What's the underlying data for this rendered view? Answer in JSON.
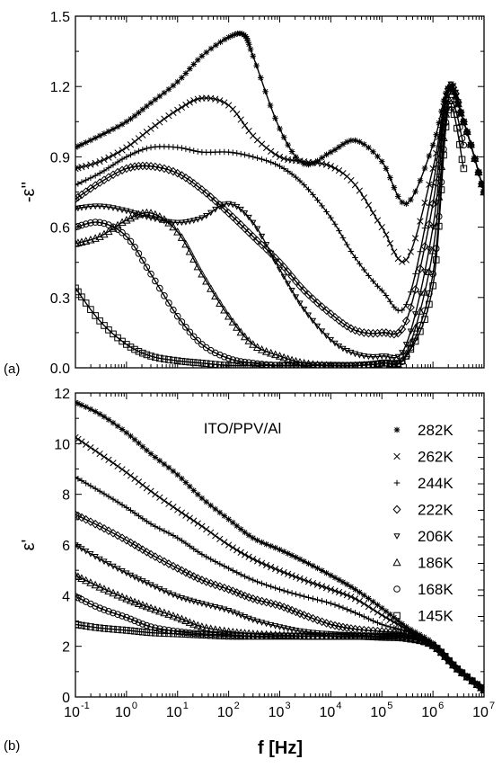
{
  "figure": {
    "panel_a_label": "(a)",
    "panel_b_label": "(b)",
    "xlabel": "f [Hz]"
  },
  "chart_data": [
    {
      "type": "scatter",
      "panel": "(a)",
      "ylabel": "-ε''",
      "xscale": "log",
      "xlim": [
        0.1,
        10000000
      ],
      "ylim": [
        0,
        1.5
      ],
      "yticks": [
        "0.0",
        "0.3",
        "0.6",
        "0.9",
        "1.2",
        "1.5"
      ],
      "grid": false,
      "series": [
        {
          "name": "282K",
          "marker": "asterisk",
          "x": [
            0.1,
            0.3,
            1,
            3,
            10,
            30,
            100,
            200,
            300,
            1000,
            3000,
            10000,
            30000,
            100000,
            300000,
            1000000,
            2000000,
            4000000,
            10000000
          ],
          "y": [
            0.94,
            0.99,
            1.05,
            1.13,
            1.22,
            1.33,
            1.41,
            1.42,
            1.33,
            1.02,
            0.87,
            0.92,
            0.97,
            0.88,
            0.7,
            0.95,
            1.19,
            1.05,
            0.75
          ]
        },
        {
          "name": "262K",
          "marker": "x",
          "x": [
            0.1,
            0.3,
            1,
            3,
            10,
            30,
            100,
            300,
            1000,
            3000,
            10000,
            30000,
            100000,
            300000,
            1000000,
            2000000,
            4000000,
            10000000
          ],
          "y": [
            0.85,
            0.88,
            0.94,
            1.02,
            1.1,
            1.15,
            1.12,
            0.99,
            0.9,
            0.88,
            0.86,
            0.78,
            0.6,
            0.46,
            0.85,
            1.19,
            1.05,
            0.75
          ]
        },
        {
          "name": "244K",
          "marker": "plus",
          "x": [
            0.1,
            0.3,
            1,
            3,
            10,
            30,
            100,
            300,
            1000,
            3000,
            10000,
            30000,
            100000,
            300000,
            1000000,
            2000000,
            4000000,
            10000000
          ],
          "y": [
            0.78,
            0.83,
            0.9,
            0.94,
            0.94,
            0.92,
            0.92,
            0.9,
            0.86,
            0.78,
            0.64,
            0.47,
            0.33,
            0.27,
            0.78,
            1.19,
            1.05,
            0.75
          ]
        },
        {
          "name": "222K",
          "marker": "diamond",
          "x": [
            0.1,
            0.3,
            1,
            3,
            10,
            30,
            100,
            300,
            1000,
            3000,
            10000,
            30000,
            100000,
            300000,
            1000000,
            2000000,
            4000000,
            10000000
          ],
          "y": [
            0.72,
            0.79,
            0.85,
            0.86,
            0.83,
            0.76,
            0.66,
            0.56,
            0.45,
            0.33,
            0.23,
            0.16,
            0.15,
            0.2,
            0.7,
            1.19,
            1.05,
            0.75
          ]
        },
        {
          "name": "206K",
          "marker": "triangle-down",
          "x": [
            0.1,
            0.3,
            1,
            3,
            10,
            30,
            100,
            300,
            1000,
            3000,
            10000,
            30000,
            100000,
            300000,
            1000000,
            2000000,
            4000000,
            10000000
          ],
          "y": [
            0.68,
            0.69,
            0.67,
            0.64,
            0.62,
            0.64,
            0.7,
            0.62,
            0.42,
            0.25,
            0.12,
            0.06,
            0.05,
            0.1,
            0.6,
            1.19,
            1.05,
            0.75
          ]
        },
        {
          "name": "186K",
          "marker": "triangle-up",
          "x": [
            0.1,
            0.3,
            1,
            3,
            10,
            30,
            100,
            300,
            1000,
            3000,
            10000,
            30000,
            100000,
            300000,
            1000000,
            2000000,
            4000000,
            10000000
          ],
          "y": [
            0.53,
            0.56,
            0.63,
            0.66,
            0.58,
            0.4,
            0.22,
            0.1,
            0.05,
            0.02,
            0.01,
            0.01,
            0.02,
            0.06,
            0.5,
            1.15,
            1.05,
            0.75
          ]
        },
        {
          "name": "168K",
          "marker": "circle",
          "x": [
            0.1,
            0.3,
            1,
            3,
            10,
            30,
            100,
            300,
            1000,
            3000,
            10000,
            30000,
            100000,
            300000,
            1000000,
            2000000,
            4000000
          ],
          "y": [
            0.6,
            0.62,
            0.56,
            0.4,
            0.22,
            0.1,
            0.04,
            0.02,
            0.01,
            0.01,
            0.01,
            0.01,
            0.02,
            0.05,
            0.4,
            1.12,
            0.95
          ]
        },
        {
          "name": "145K",
          "marker": "square",
          "x": [
            0.1,
            0.3,
            1,
            3,
            10,
            30,
            100,
            300,
            1000,
            3000,
            10000,
            30000,
            100000,
            300000,
            1000000,
            2000000,
            4000000
          ],
          "y": [
            0.34,
            0.2,
            0.1,
            0.05,
            0.03,
            0.02,
            0.01,
            0.01,
            0.01,
            0.01,
            0.01,
            0.01,
            0.02,
            0.05,
            0.35,
            1.1,
            0.85
          ]
        }
      ]
    },
    {
      "type": "scatter",
      "panel": "(b)",
      "ylabel": "ε'",
      "xlabel": "f [Hz]",
      "xscale": "log",
      "xlim": [
        0.1,
        10000000
      ],
      "ylim": [
        0,
        13
      ],
      "yticks": [
        "0",
        "2",
        "4",
        "6",
        "8",
        "10",
        "12"
      ],
      "xticks": [
        "10",
        "10",
        "10",
        "10",
        "10",
        "10",
        "10",
        "10",
        "10"
      ],
      "xtick_exponents": [
        "-1",
        "0",
        "1",
        "2",
        "3",
        "4",
        "5",
        "6",
        "7"
      ],
      "annotation": "ITO/PPV/Al",
      "legend_position": "top-right",
      "grid": false,
      "series": [
        {
          "name": "282K",
          "marker": "asterisk",
          "x": [
            0.1,
            0.3,
            1,
            3,
            10,
            30,
            100,
            300,
            1000,
            3000,
            10000,
            30000,
            100000,
            300000,
            1000000,
            3000000,
            10000000
          ],
          "y": [
            12.6,
            12.1,
            11.3,
            10.4,
            9.5,
            8.5,
            7.6,
            6.8,
            6.3,
            5.8,
            5.2,
            4.6,
            3.8,
            3.0,
            2.3,
            1.2,
            0.3
          ]
        },
        {
          "name": "262K",
          "marker": "x",
          "x": [
            0.1,
            0.3,
            1,
            3,
            10,
            30,
            100,
            300,
            1000,
            3000,
            10000,
            30000,
            100000,
            300000,
            1000000,
            3000000,
            10000000
          ],
          "y": [
            11.1,
            10.4,
            9.6,
            8.8,
            8.0,
            7.3,
            6.5,
            5.9,
            5.4,
            5.0,
            4.6,
            4.2,
            3.5,
            2.9,
            2.2,
            1.2,
            0.3
          ]
        },
        {
          "name": "244K",
          "marker": "plus",
          "x": [
            0.1,
            0.3,
            1,
            3,
            10,
            30,
            100,
            300,
            1000,
            3000,
            10000,
            30000,
            100000,
            300000,
            1000000,
            3000000,
            10000000
          ],
          "y": [
            9.4,
            8.8,
            8.1,
            7.4,
            6.8,
            6.1,
            5.5,
            5.0,
            4.6,
            4.3,
            4.0,
            3.6,
            3.1,
            2.8,
            2.2,
            1.2,
            0.3
          ]
        },
        {
          "name": "222K",
          "marker": "diamond",
          "x": [
            0.1,
            0.3,
            1,
            3,
            10,
            30,
            100,
            300,
            1000,
            3000,
            10000,
            30000,
            100000,
            300000,
            1000000,
            3000000,
            10000000
          ],
          "y": [
            7.8,
            7.3,
            6.7,
            6.1,
            5.5,
            5.0,
            4.6,
            4.2,
            3.9,
            3.5,
            3.1,
            2.9,
            2.8,
            2.7,
            2.2,
            1.2,
            0.3
          ]
        },
        {
          "name": "206K",
          "marker": "triangle-down",
          "x": [
            0.1,
            0.3,
            1,
            3,
            10,
            30,
            100,
            300,
            1000,
            3000,
            10000,
            30000,
            100000,
            300000,
            1000000,
            3000000,
            10000000
          ],
          "y": [
            6.5,
            5.9,
            5.3,
            4.8,
            4.3,
            4.0,
            3.7,
            3.3,
            3.0,
            2.8,
            2.7,
            2.65,
            2.6,
            2.6,
            2.2,
            1.2,
            0.3
          ]
        },
        {
          "name": "186K",
          "marker": "triangle-up",
          "x": [
            0.1,
            0.3,
            1,
            3,
            10,
            30,
            100,
            300,
            1000,
            3000,
            10000,
            30000,
            100000,
            300000,
            1000000,
            3000000,
            10000000
          ],
          "y": [
            5.2,
            4.7,
            4.2,
            3.8,
            3.4,
            3.0,
            2.8,
            2.7,
            2.65,
            2.6,
            2.6,
            2.6,
            2.6,
            2.55,
            2.2,
            1.2,
            0.3
          ]
        },
        {
          "name": "168K",
          "marker": "circle",
          "x": [
            0.1,
            0.3,
            1,
            3,
            10,
            30,
            100,
            300,
            1000,
            3000,
            10000,
            30000,
            100000,
            300000,
            1000000,
            3000000,
            10000000
          ],
          "y": [
            4.3,
            3.8,
            3.4,
            3.0,
            2.8,
            2.7,
            2.65,
            2.6,
            2.6,
            2.6,
            2.6,
            2.6,
            2.6,
            2.55,
            2.2,
            1.2,
            0.3
          ]
        },
        {
          "name": "145K",
          "marker": "square",
          "x": [
            0.1,
            0.3,
            1,
            3,
            10,
            30,
            100,
            300,
            1000,
            3000,
            10000,
            30000,
            100000,
            300000,
            1000000,
            3000000,
            10000000
          ],
          "y": [
            3.1,
            2.95,
            2.85,
            2.75,
            2.7,
            2.65,
            2.6,
            2.6,
            2.6,
            2.6,
            2.6,
            2.6,
            2.55,
            2.5,
            2.2,
            1.2,
            0.3
          ]
        }
      ]
    }
  ]
}
